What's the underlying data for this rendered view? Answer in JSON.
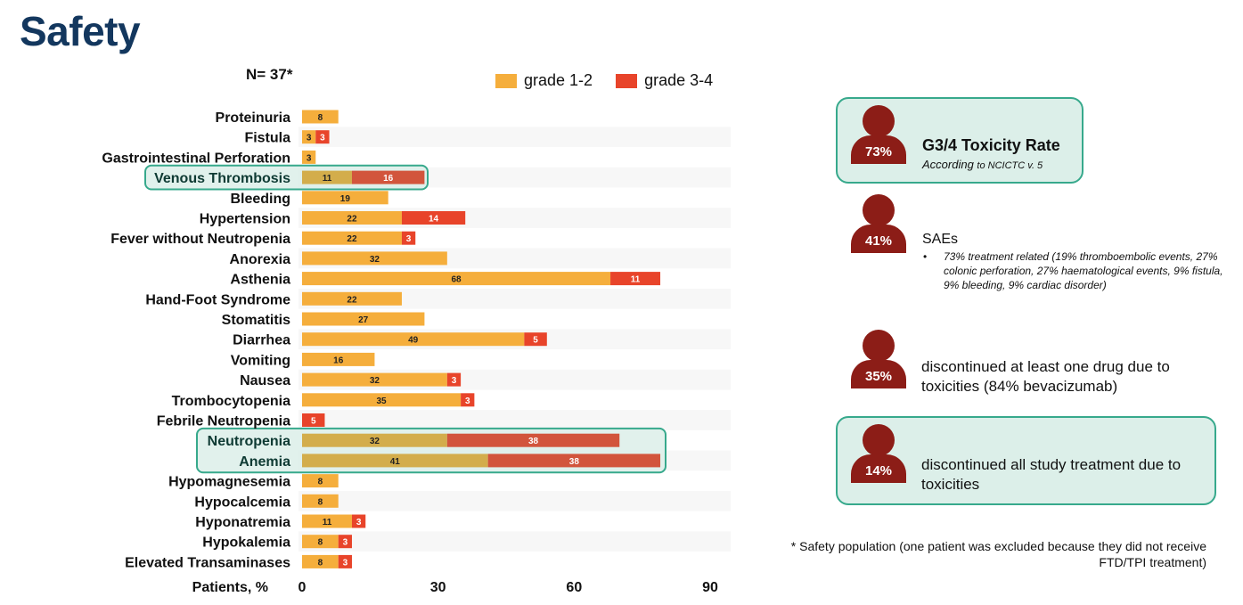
{
  "page": {
    "title": "Safety"
  },
  "chart_data": {
    "type": "bar",
    "orientation": "horizontal",
    "stacked": true,
    "n_label": "N= 37*",
    "categories": [
      "Proteinuria",
      "Fistula",
      "Gastrointestinal Perforation",
      "Venous Thrombosis",
      "Bleeding",
      "Hypertension",
      "Fever without Neutropenia",
      "Anorexia",
      "Asthenia",
      "Hand-Foot Syndrome",
      "Stomatitis",
      "Diarrhea",
      "Vomiting",
      "Nausea",
      "Trombocytopenia",
      "Febrile Neutropenia",
      "Neutropenia",
      "Anemia",
      "Hypomagnesemia",
      "Hypocalcemia",
      "Hyponatremia",
      "Hypokalemia",
      "Elevated Transaminases"
    ],
    "series": [
      {
        "name": "grade 1-2",
        "color": "#f5ae3c",
        "values": [
          8,
          3,
          3,
          11,
          19,
          22,
          22,
          32,
          68,
          22,
          27,
          49,
          16,
          32,
          35,
          0,
          32,
          41,
          8,
          8,
          11,
          8,
          8
        ]
      },
      {
        "name": "grade 3-4",
        "color": "#e8442a",
        "values": [
          0,
          3,
          0,
          16,
          0,
          14,
          3,
          0,
          11,
          0,
          0,
          5,
          0,
          3,
          3,
          5,
          38,
          38,
          0,
          0,
          3,
          3,
          3
        ]
      }
    ],
    "highlighted": [
      "Venous Thrombosis",
      "Neutropenia",
      "Anemia"
    ],
    "xlabel": "Patients, %",
    "xticks": [
      0,
      30,
      60,
      90
    ],
    "xlim": [
      0,
      90
    ],
    "legend": "top"
  },
  "cards": [
    {
      "percent": "73%",
      "title": "G3/4 Toxicity Rate",
      "sub_prefix": "According ",
      "sub_small": "to NCICTC v. 5"
    },
    {
      "percent": "41%",
      "title": "SAEs",
      "bullet": "•",
      "text": "73% treatment related (19% thromboembolic events, 27% colonic perforation, 27% haematological events, 9% fistula, 9% bleeding, 9% cardiac disorder)"
    },
    {
      "percent": "35%",
      "text": "discontinued at least one drug due to toxicities (84% bevacizumab)"
    },
    {
      "percent": "14%",
      "text": "discontinued all study treatment due to toxicities"
    }
  ],
  "footnote": "* Safety population (one patient was excluded because they did not receive FTD/TPI treatment)"
}
